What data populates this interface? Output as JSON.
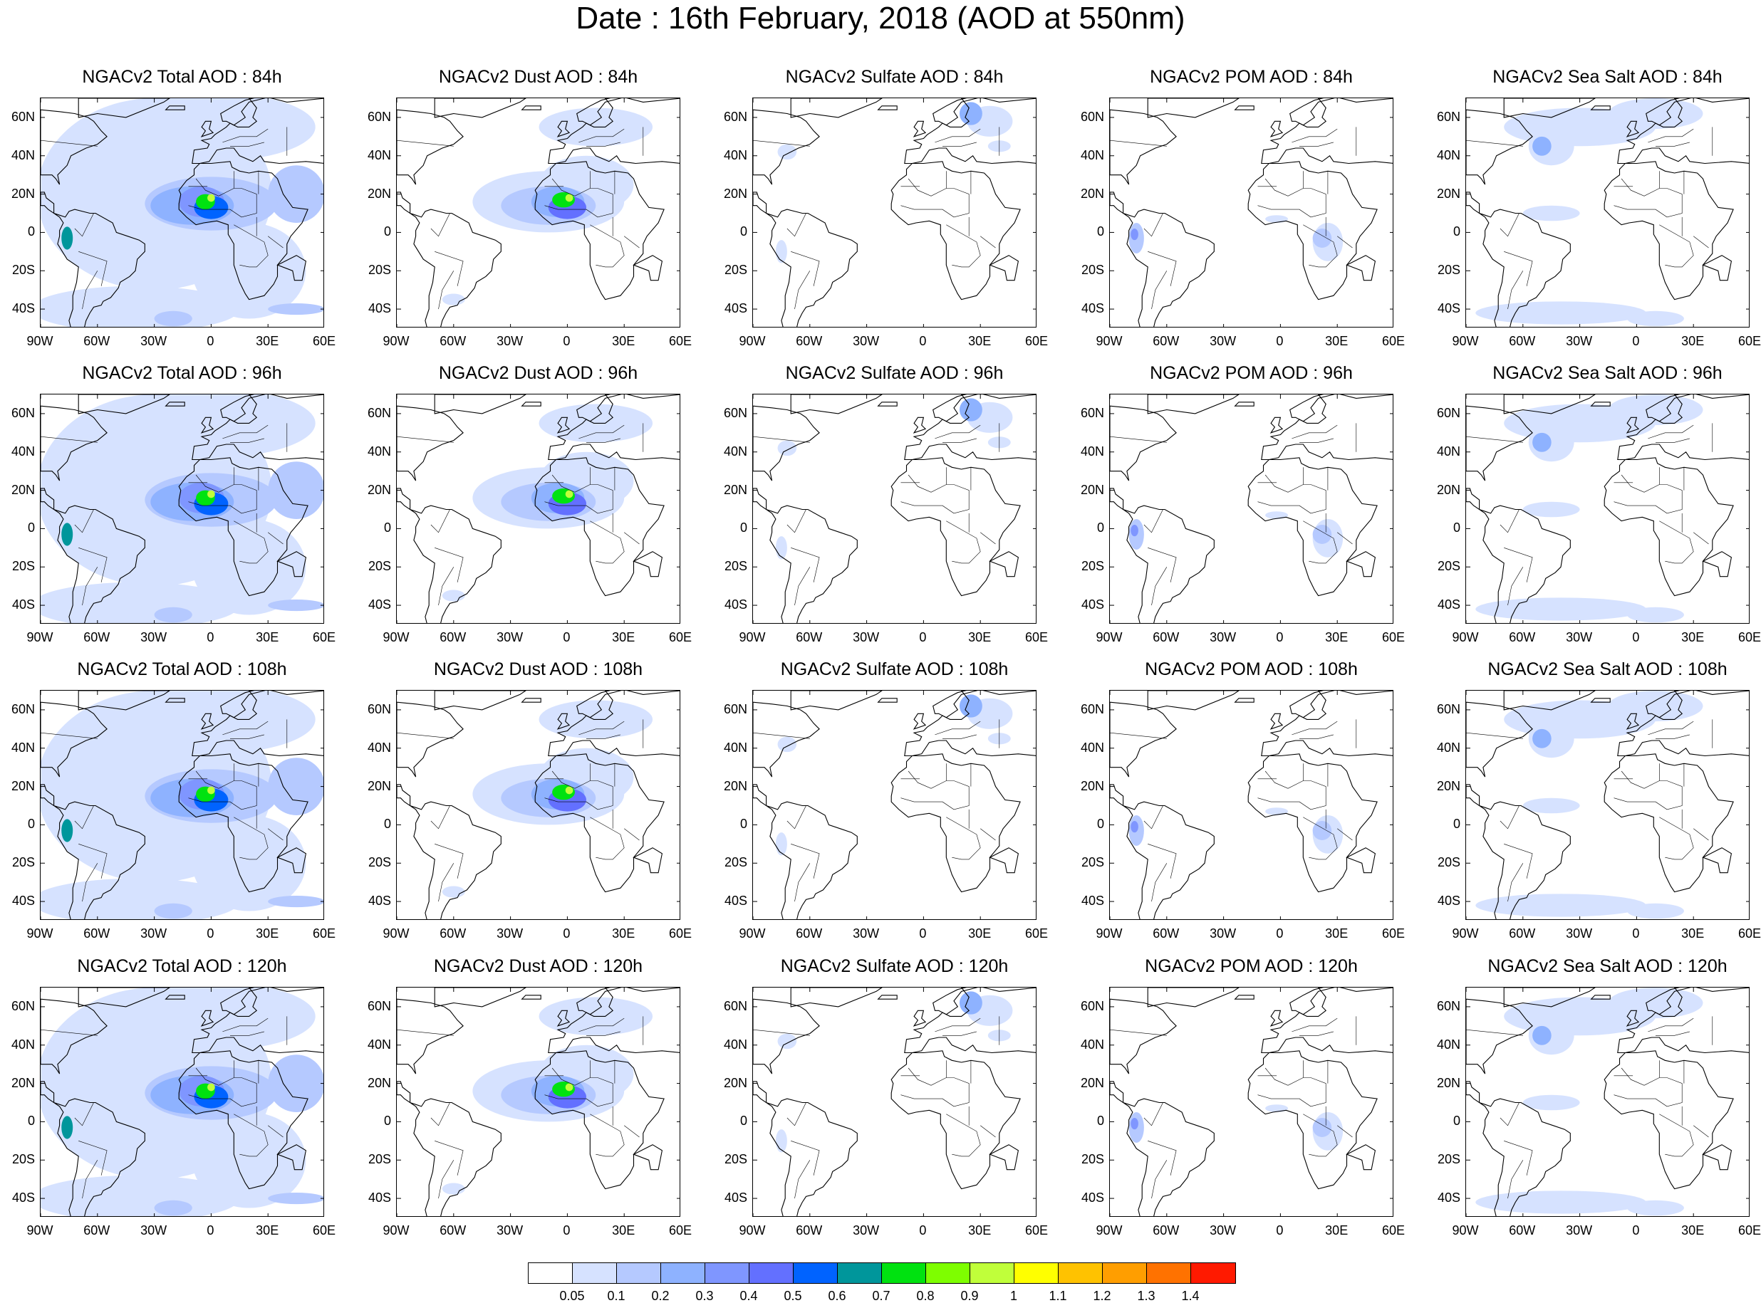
{
  "title": "Date : 16th February, 2018 (AOD at 550nm)",
  "lat_labels": [
    "60N",
    "40N",
    "20N",
    "0",
    "20S",
    "40S"
  ],
  "lat_values": [
    60,
    40,
    20,
    0,
    -20,
    -40
  ],
  "lon_labels": [
    "90W",
    "60W",
    "30W",
    "0",
    "30E",
    "60E"
  ],
  "lon_values": [
    -90,
    -60,
    -30,
    0,
    30,
    60
  ],
  "map_extent": {
    "lon_min": -90,
    "lon_max": 60,
    "lat_min": -50,
    "lat_max": 70
  },
  "columns": [
    "total",
    "dust",
    "sulfate",
    "pom",
    "seasalt"
  ],
  "panels": [
    [
      "NGACv2 Total AOD : 84h",
      "NGACv2 Dust AOD : 84h",
      "NGACv2 Sulfate AOD : 84h",
      "NGACv2 POM AOD : 84h",
      "NGACv2 Sea Salt AOD : 84h"
    ],
    [
      "NGACv2 Total AOD : 96h",
      "NGACv2 Dust AOD : 96h",
      "NGACv2 Sulfate AOD : 96h",
      "NGACv2 POM AOD : 96h",
      "NGACv2 Sea Salt AOD : 96h"
    ],
    [
      "NGACv2 Total AOD : 108h",
      "NGACv2 Dust AOD : 108h",
      "NGACv2 Sulfate AOD : 108h",
      "NGACv2 POM AOD : 108h",
      "NGACv2 Sea Salt AOD : 108h"
    ],
    [
      "NGACv2 Total AOD : 120h",
      "NGACv2 Dust AOD : 120h",
      "NGACv2 Sulfate AOD : 120h",
      "NGACv2 POM AOD : 120h",
      "NGACv2 Sea Salt  AOD : 120h"
    ]
  ],
  "colorbar": {
    "colors": [
      "#ffffff",
      "#d6e2ff",
      "#b5c9ff",
      "#8eb2ff",
      "#7f96ff",
      "#6370ff",
      "#0063ff",
      "#00969b",
      "#00e210",
      "#7efe00",
      "#c0ff3a",
      "#ffff00",
      "#ffc200",
      "#ff9e00",
      "#ff7200",
      "#ff1a00"
    ],
    "labels": [
      "0.05",
      "0.1",
      "0.2",
      "0.3",
      "0.4",
      "0.5",
      "0.6",
      "0.7",
      "0.8",
      "0.9",
      "1",
      "1.1",
      "1.2",
      "1.3",
      "1.4"
    ]
  }
}
